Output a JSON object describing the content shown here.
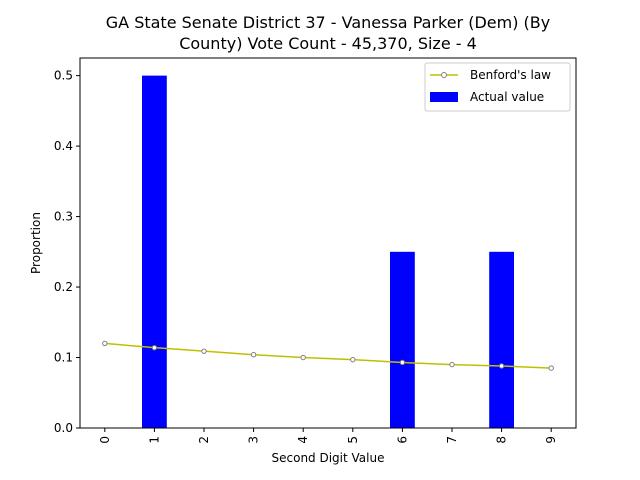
{
  "chart_data": {
    "type": "bar",
    "title_lines": [
      "GA State Senate District 37 - Vanessa Parker (Dem) (By",
      "County) Vote Count - 45,370, Size - 4"
    ],
    "xlabel": "Second Digit Value",
    "ylabel": "Proportion",
    "categories": [
      "0",
      "1",
      "2",
      "3",
      "4",
      "5",
      "6",
      "7",
      "8",
      "9"
    ],
    "ylim": [
      0,
      0.525
    ],
    "yticks": [
      0.0,
      0.1,
      0.2,
      0.3,
      0.4,
      0.5
    ],
    "ytick_labels": [
      "0.0",
      "0.1",
      "0.2",
      "0.3",
      "0.4",
      "0.5"
    ],
    "series": [
      {
        "name": "Actual value",
        "kind": "bar",
        "color": "#0000ff",
        "values": [
          0,
          0.5,
          0,
          0,
          0,
          0,
          0.25,
          0,
          0.25,
          0
        ]
      },
      {
        "name": "Benford's law",
        "kind": "line",
        "color": "#bfbf00",
        "marker_color": "#808080",
        "values": [
          0.12,
          0.114,
          0.109,
          0.104,
          0.1,
          0.097,
          0.093,
          0.09,
          0.088,
          0.085
        ]
      }
    ],
    "legend": {
      "placement": "top-right",
      "entries": [
        "Benford's law",
        "Actual value"
      ]
    },
    "grid": false
  }
}
